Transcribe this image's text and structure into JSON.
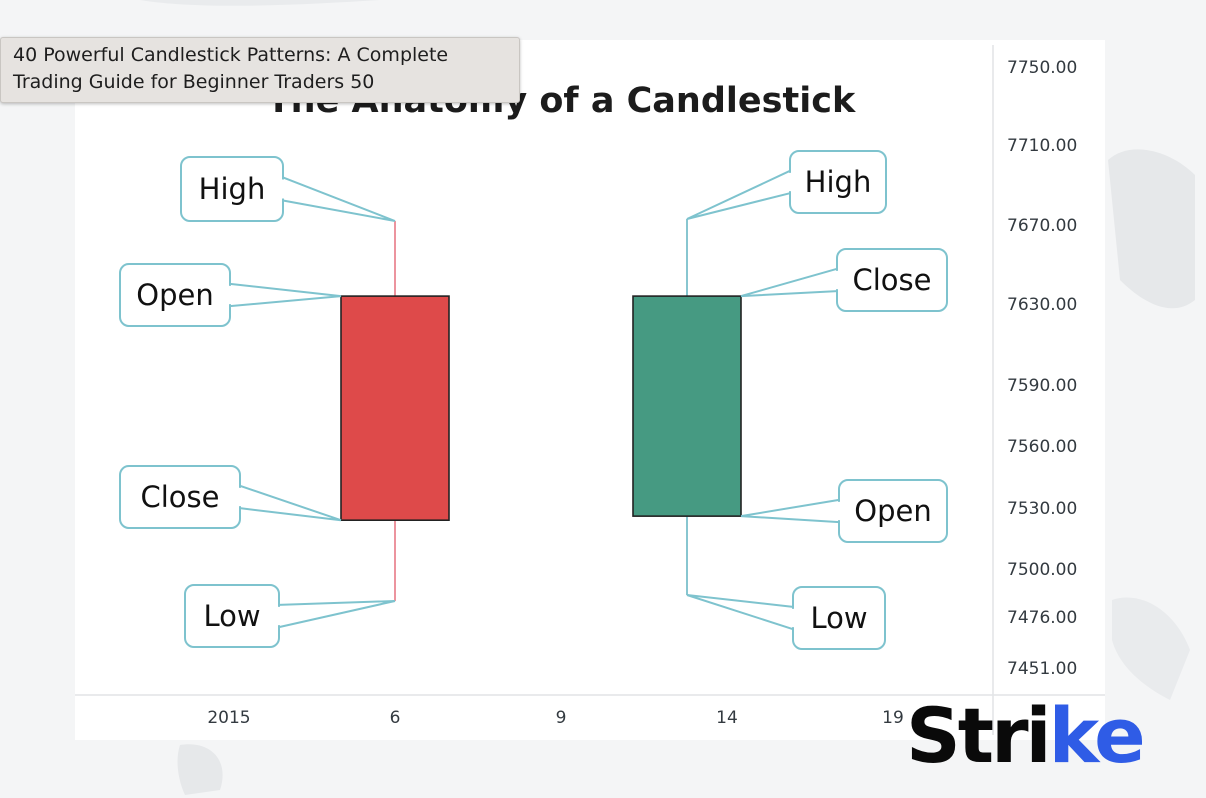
{
  "tooltip": {
    "text": "40 Powerful Candlestick Patterns: A Complete Trading Guide for Beginner Traders 50"
  },
  "brand": {
    "main": "Stri",
    "accent": "ke",
    "accent_color": "#2f5ce6"
  },
  "chart_data": {
    "type": "candlestick",
    "title": "The Anatomy of a Candlestick",
    "y_ticks": [
      7750.0,
      7710.0,
      7670.0,
      7630.0,
      7590.0,
      7560.0,
      7530.0,
      7500.0,
      7476.0,
      7451.0
    ],
    "y_tick_labels": [
      "7750.00",
      "7710.00",
      "7670.00",
      "7630.00",
      "7590.00",
      "7560.00",
      "7530.00",
      "7500.00",
      "7476.00",
      "7451.00"
    ],
    "x_tick_labels": [
      "2015",
      "6",
      "9",
      "14",
      "19"
    ],
    "candles": [
      {
        "x": 6,
        "open": 7634,
        "high": 7672,
        "low": 7484,
        "close": 7524,
        "color": "#de4a4a",
        "wick_color": "#e87a85"
      },
      {
        "x": 11,
        "open": 7526,
        "high": 7673,
        "low": 7487,
        "close": 7634,
        "color": "#469a82",
        "wick_color": "#6ab8c4"
      }
    ],
    "annotations": [
      {
        "candle": 0,
        "point": "high",
        "label": "High"
      },
      {
        "candle": 0,
        "point": "open",
        "label": "Open"
      },
      {
        "candle": 0,
        "point": "close",
        "label": "Close"
      },
      {
        "candle": 0,
        "point": "low",
        "label": "Low"
      },
      {
        "candle": 1,
        "point": "high",
        "label": "High"
      },
      {
        "candle": 1,
        "point": "close",
        "label": "Close"
      },
      {
        "candle": 1,
        "point": "open",
        "label": "Open"
      },
      {
        "candle": 1,
        "point": "low",
        "label": "Low"
      }
    ],
    "callout_border_color": "#7ec3ce",
    "grid": false
  }
}
